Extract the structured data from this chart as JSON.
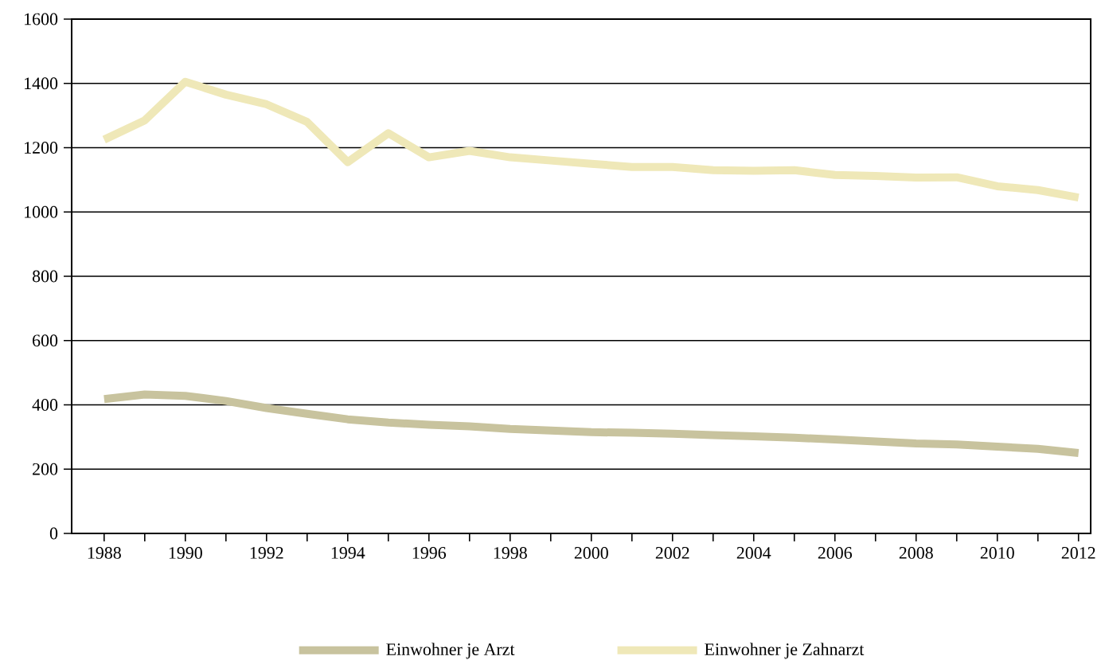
{
  "chart_data": {
    "type": "line",
    "x": [
      1988,
      1989,
      1990,
      1991,
      1992,
      1993,
      1994,
      1995,
      1996,
      1997,
      1998,
      1999,
      2000,
      2001,
      2002,
      2003,
      2004,
      2005,
      2006,
      2007,
      2008,
      2009,
      2010,
      2011,
      2012
    ],
    "series": [
      {
        "name": "Einwohner je Arzt",
        "color": "#c8c39e",
        "values": [
          418,
          432,
          428,
          412,
          390,
          372,
          355,
          345,
          338,
          333,
          325,
          320,
          315,
          313,
          310,
          306,
          302,
          298,
          292,
          286,
          280,
          277,
          270,
          263,
          250
        ]
      },
      {
        "name": "Einwohner je Zahnarzt",
        "color": "#efe8b8",
        "values": [
          1225,
          1285,
          1405,
          1365,
          1335,
          1280,
          1155,
          1245,
          1170,
          1190,
          1170,
          1160,
          1150,
          1140,
          1140,
          1130,
          1128,
          1130,
          1115,
          1112,
          1107,
          1108,
          1080,
          1068,
          1045
        ]
      }
    ],
    "xlim": [
      1987.2,
      2012.3
    ],
    "xticks": [
      1988,
      1990,
      1992,
      1994,
      1996,
      1998,
      2000,
      2002,
      2004,
      2006,
      2008,
      2010,
      2012
    ],
    "ylim": [
      0,
      1600
    ],
    "yticks": [
      0,
      200,
      400,
      600,
      800,
      1000,
      1200,
      1400,
      1600
    ],
    "grid": "y",
    "legend": "bottom",
    "marker": "none",
    "line_style": "solid"
  }
}
